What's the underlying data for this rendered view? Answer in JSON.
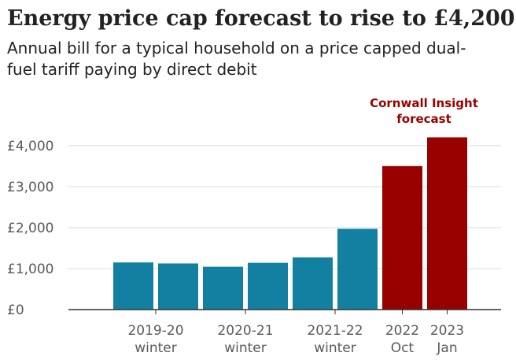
{
  "chart_data": {
    "type": "bar",
    "title": "Energy price cap forecast to rise to £4,200",
    "subtitle": "Annual bill for a typical household on a price capped dual-fuel tariff paying by direct debit",
    "categories": [
      "2019-20 winter a",
      "2019-20 winter b",
      "2020-21 winter a",
      "2020-21 winter b",
      "2021-22 winter a",
      "2021-22 winter b",
      "2022 Oct",
      "2023 Jan"
    ],
    "values": [
      1150,
      1125,
      1045,
      1140,
      1275,
      1970,
      3500,
      4200
    ],
    "series_types": [
      "actual",
      "actual",
      "actual",
      "actual",
      "actual",
      "actual",
      "forecast",
      "forecast"
    ],
    "x_tick_labels": [
      {
        "line1": "2019-20",
        "line2": "winter",
        "bars": [
          0,
          1
        ]
      },
      {
        "line1": "2020-21",
        "line2": "winter",
        "bars": [
          2,
          3
        ]
      },
      {
        "line1": "2021-22",
        "line2": "winter",
        "bars": [
          4,
          5
        ]
      },
      {
        "line1": "2022",
        "line2": "Oct",
        "bars": [
          6,
          6
        ]
      },
      {
        "line1": "2023",
        "line2": "Jan",
        "bars": [
          7,
          7
        ]
      }
    ],
    "y_ticks": [
      {
        "value": 0,
        "label": "£0"
      },
      {
        "value": 1000,
        "label": "£1,000"
      },
      {
        "value": 2000,
        "label": "£2,000"
      },
      {
        "value": 3000,
        "label": "£3,000"
      },
      {
        "value": 4000,
        "label": "£4,000"
      }
    ],
    "ylim": [
      0,
      4200
    ],
    "grid": true,
    "annotation": {
      "line1": "Cornwall Insight",
      "line2": "forecast"
    },
    "colors": {
      "actual": "#1380A1",
      "forecast": "#990000",
      "grid": "#dddddd",
      "axis": "#333333",
      "annotation": "#990000"
    }
  }
}
